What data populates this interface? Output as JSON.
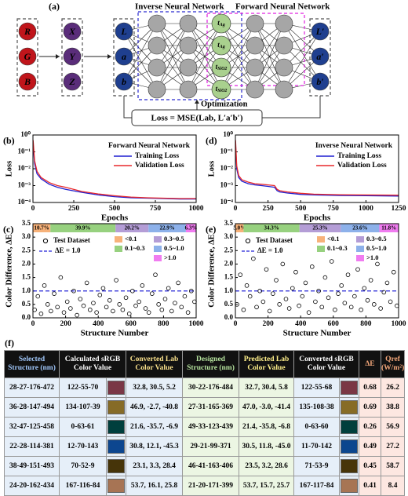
{
  "diagram": {
    "label": "(a)",
    "inverse_title": "Inverse Neural Network",
    "forward_title": "Forward Neural Network",
    "optimization": "Optimization",
    "loss": "Loss = MSE(Lab, L′a′b′)",
    "rgb": [
      "R",
      "G",
      "B"
    ],
    "xyz": [
      "X",
      "Y",
      "Z"
    ],
    "lab": [
      "L",
      "a",
      "b"
    ],
    "outputs": [
      "L′",
      "a′",
      "b′"
    ],
    "structure_nodes": [
      {
        "symbol": "t",
        "subscript": "Ag"
      },
      {
        "symbol": "t",
        "subscript": "Ag"
      },
      {
        "symbol": "t",
        "subscript": "SiO2"
      },
      {
        "symbol": "t",
        "subscript": "SiO2"
      }
    ]
  },
  "chart_data": [
    {
      "type": "line",
      "panel_label": "(b)",
      "legend_title": "Forward Neural Network",
      "x_label": "Epochs",
      "y_label": "Loss",
      "log_scale": true,
      "legend": "upper right",
      "x": [
        1,
        10,
        25,
        50,
        100,
        150,
        200,
        300,
        400,
        500,
        600,
        700,
        800,
        900,
        1000
      ],
      "series": [
        {
          "name": "Training Loss",
          "color": "#1f1fd0",
          "values": [
            0.3,
            0.02,
            0.005,
            0.0025,
            0.0012,
            0.0008,
            0.0006,
            0.0004,
            0.00028,
            0.00022,
            0.00019,
            0.00018,
            0.00017,
            0.00016,
            0.00016
          ]
        },
        {
          "name": "Validation Loss",
          "color": "#e8282b",
          "values": [
            0.5,
            0.03,
            0.007,
            0.003,
            0.0015,
            0.001,
            0.0008,
            0.00045,
            0.00032,
            0.00025,
            0.00021,
            0.00019,
            0.00018,
            0.00017,
            0.00017
          ]
        }
      ],
      "xlim": [
        0,
        1000
      ],
      "xticks": [
        0,
        250,
        500,
        750,
        1000
      ],
      "ylim": [
        0.0001,
        1
      ],
      "yticks": [
        {
          "value": 0.0001,
          "label": "10⁻⁴"
        },
        {
          "value": 0.001,
          "label": "10⁻³"
        },
        {
          "value": 0.01,
          "label": "10⁻²"
        },
        {
          "value": 0.1,
          "label": "10⁻¹"
        },
        {
          "value": 1,
          "label": "10⁰"
        }
      ]
    },
    {
      "type": "line",
      "panel_label": "(d)",
      "legend_title": "Inverse Neural Network",
      "x_label": "Epochs",
      "y_label": "Loss",
      "log_scale": true,
      "legend": "upper right",
      "x": [
        1,
        10,
        25,
        50,
        100,
        150,
        200,
        250,
        300,
        320,
        340,
        400,
        500,
        600,
        800,
        1000,
        1250
      ],
      "series": [
        {
          "name": "Training Loss",
          "color": "#1f1fd0",
          "values": [
            0.3,
            0.01,
            0.003,
            0.0018,
            0.0013,
            0.0011,
            0.001,
            0.0009,
            0.0008,
            0.0005,
            0.00042,
            0.00036,
            0.0003,
            0.00028,
            0.00026,
            0.00025,
            0.00024
          ]
        },
        {
          "name": "Validation Loss",
          "color": "#e8282b",
          "values": [
            0.5,
            0.015,
            0.004,
            0.0022,
            0.0016,
            0.0013,
            0.0012,
            0.0011,
            0.001,
            0.0006,
            0.0005,
            0.00042,
            0.00035,
            0.00031,
            0.00029,
            0.00028,
            0.00027
          ]
        }
      ],
      "xlim": [
        0,
        1250
      ],
      "xticks": [
        0,
        250,
        500,
        750,
        1000,
        1250
      ],
      "ylim": [
        0.0001,
        1
      ],
      "yticks": [
        {
          "value": 0.0001,
          "label": "10⁻⁴"
        },
        {
          "value": 0.001,
          "label": "10⁻³"
        },
        {
          "value": 0.01,
          "label": "10⁻²"
        },
        {
          "value": 0.1,
          "label": "10⁻¹"
        },
        {
          "value": 1,
          "label": "10⁰"
        }
      ]
    },
    {
      "type": "scatter",
      "panel_label": "(c)",
      "x_label": "Structure Number",
      "y_label": "Color Difference, ΔE",
      "x": [
        10,
        30,
        50,
        70,
        90,
        110,
        130,
        150,
        170,
        190,
        210,
        230,
        250,
        270,
        290,
        310,
        330,
        350,
        370,
        390,
        410,
        430,
        450,
        470,
        490,
        510,
        530,
        550,
        570,
        590,
        610,
        630,
        650,
        670,
        690,
        710,
        730,
        750,
        770,
        790,
        810,
        830,
        850,
        870,
        890,
        910,
        930,
        950,
        970,
        990
      ],
      "series": [
        {
          "name": "Test Dataset",
          "color": "#000000",
          "values": [
            0.3,
            0.8,
            0.15,
            1.2,
            0.5,
            0.25,
            0.9,
            0.4,
            1.5,
            0.2,
            0.6,
            0.35,
            1.0,
            0.1,
            0.7,
            0.45,
            1.3,
            0.3,
            0.55,
            0.2,
            0.85,
            1.1,
            0.4,
            0.65,
            0.25,
            1.4,
            0.5,
            0.3,
            0.75,
            0.15,
            1.0,
            0.45,
            0.6,
            1.2,
            0.35,
            0.2,
            0.9,
            1.6,
            0.5,
            0.3,
            0.7,
            1.1,
            0.25,
            0.55,
            1.3,
            0.4,
            0.8,
            0.2,
            1.0,
            0.6
          ]
        }
      ],
      "reference_line": {
        "value": 1.0,
        "label": "ΔE = 1.0",
        "color": "#2323d6"
      },
      "distribution": {
        "categories": [
          "<0.1",
          "0.1~0.3",
          "0.3~0.5",
          "0.5~1.0",
          ">1.0"
        ],
        "colors": [
          "#f7b27a",
          "#97d17f",
          "#b49dd6",
          "#8db1ea",
          "#f07cf0"
        ],
        "values": [
          10.7,
          39.9,
          20.2,
          22.9,
          6.3
        ],
        "value_labels": [
          "10.7%",
          "39.9%",
          "20.2%",
          "22.9%",
          "6.3%"
        ]
      },
      "xlim": [
        0,
        1000
      ],
      "xticks": [
        0,
        200,
        400,
        600,
        800,
        1000
      ],
      "ylim": [
        0,
        3.5
      ],
      "yticks": [
        {
          "value": 0,
          "label": "0.0"
        },
        0.5,
        {
          "value": 1,
          "label": "1.0"
        },
        1.5,
        {
          "value": 2,
          "label": "2.0"
        },
        2.5,
        {
          "value": 3,
          "label": "3.0"
        },
        3.5
      ]
    },
    {
      "type": "scatter",
      "panel_label": "(e)",
      "x_label": "Structure Number",
      "y_label": "Color Difference, ΔE",
      "x": [
        10,
        30,
        50,
        70,
        90,
        110,
        130,
        150,
        170,
        190,
        210,
        230,
        250,
        270,
        290,
        310,
        330,
        350,
        370,
        390,
        410,
        430,
        450,
        470,
        490,
        510,
        530,
        550,
        570,
        590,
        610,
        630,
        650,
        670,
        690,
        710,
        730,
        750,
        770,
        790,
        810,
        830,
        850,
        870,
        890,
        910,
        930,
        950,
        970,
        990
      ],
      "series": [
        {
          "name": "Test Dataset",
          "color": "#000000",
          "values": [
            0.5,
            1.6,
            0.3,
            1.2,
            0.8,
            2.2,
            0.4,
            1.0,
            0.6,
            1.8,
            0.25,
            0.9,
            1.4,
            0.5,
            2.0,
            0.7,
            0.35,
            1.1,
            1.7,
            0.45,
            0.8,
            1.3,
            0.2,
            1.9,
            0.6,
            1.0,
            0.4,
            1.5,
            0.75,
            2.1,
            0.3,
            0.9,
            1.2,
            0.55,
            1.6,
            0.4,
            0.8,
            1.8,
            0.3,
            1.1,
            0.65,
            1.4,
            0.5,
            2.0,
            0.35,
            0.95,
            1.3,
            0.6,
            1.7,
            0.45
          ]
        }
      ],
      "reference_line": {
        "value": 1.0,
        "label": "ΔE = 1.0",
        "color": "#2323d6"
      },
      "distribution": {
        "categories": [
          "<0.1",
          "0.1~0.3",
          "0.3~0.5",
          "0.5~1.0",
          ">1.0"
        ],
        "colors": [
          "#f7b27a",
          "#97d17f",
          "#b49dd6",
          "#8db1ea",
          "#f07cf0"
        ],
        "values": [
          5.0,
          34.3,
          25.3,
          23.6,
          11.8
        ],
        "value_labels": [
          "5.0%",
          "34.3%",
          "25.3%",
          "23.6%",
          "11.8%"
        ]
      },
      "xlim": [
        0,
        1000
      ],
      "xticks": [
        0,
        200,
        400,
        600,
        800,
        1000
      ],
      "ylim": [
        0,
        3.5
      ],
      "yticks": [
        {
          "value": 0,
          "label": "0.0"
        },
        0.5,
        {
          "value": 1,
          "label": "1.0"
        },
        1.5,
        {
          "value": 2,
          "label": "2.0"
        },
        2.5,
        {
          "value": 3,
          "label": "3.0"
        },
        3.5
      ]
    }
  ],
  "table": {
    "label": "(f)",
    "header": [
      "Selected Structure (nm)",
      "Calculated sRGB Color Value",
      "Converted Lab Color Value",
      "Designed Structure (nm)",
      "Predicted Lab Color Value",
      "Converted sRGB Color Value",
      "ΔE",
      "Qref (W/m²)"
    ],
    "rows": [
      [
        "28-27-176-472",
        "122-55-70",
        "32.8, 30.5, 5.2",
        "30-22-176-484",
        "32.7, 30.4, 5.8",
        "122-55-68",
        0.68,
        26.2
      ],
      [
        "36-28-147-494",
        "134-107-39",
        "46.9, -2.7, -40.8",
        "27-31-165-369",
        "47.0, -3.0, -41.4",
        "135-108-38",
        0.69,
        38.8
      ],
      [
        "32-47-125-458",
        "0-63-61",
        "21.6, -35.7, -6.9",
        "49-33-123-439",
        "21.4, -35.8, -6.8",
        "0-63-60",
        0.26,
        56.9
      ],
      [
        "22-28-114-381",
        "12-70-143",
        "30.8, 12.1, -45.3",
        "29-21-99-371",
        "30.5, 11.8, -45.0",
        "11-70-142",
        0.49,
        27.2
      ],
      [
        "38-49-151-493",
        "70-52-9",
        "23.1, 3.3, 28.4",
        "46-41-163-406",
        "23.5, 3.2, 28.6",
        "71-53-9",
        0.45,
        58.7
      ],
      [
        "24-20-162-434",
        "167-116-84",
        "53.7, 16.1, 25.8",
        "21-20-171-399",
        "53.7, 15.7, 25.7",
        "167-117-84",
        0.41,
        8.4
      ]
    ]
  }
}
